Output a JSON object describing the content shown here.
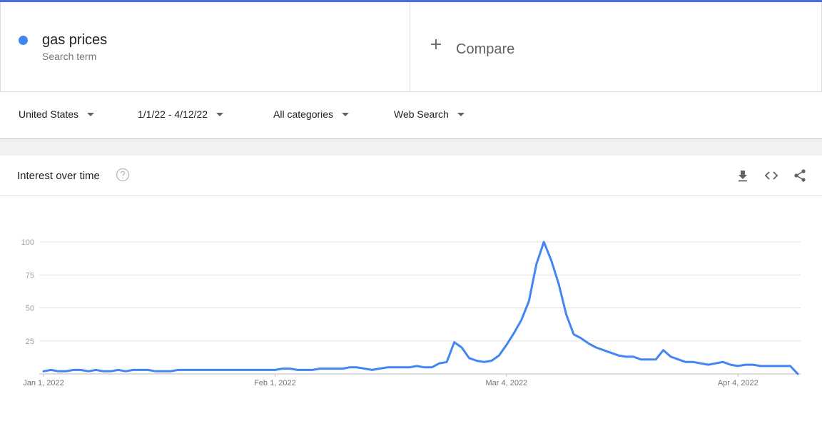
{
  "search_term": {
    "name": "gas prices",
    "subtitle": "Search term",
    "color": "#4285f4"
  },
  "compare": {
    "label": "Compare",
    "icon": "plus-icon"
  },
  "filters": {
    "region": "United States",
    "date_range": "1/1/22 - 4/12/22",
    "category": "All categories",
    "property": "Web Search"
  },
  "panel": {
    "title": "Interest over time",
    "icons": [
      "help-icon",
      "download-icon",
      "embed-code-icon",
      "share-icon"
    ]
  },
  "chart_data": {
    "type": "line",
    "title": "",
    "xlabel": "",
    "ylabel": "",
    "ylim": [
      0,
      100
    ],
    "yticks": [
      25,
      50,
      75,
      100
    ],
    "grid": true,
    "x_tick_labels": [
      "Jan 1, 2022",
      "Feb 1, 2022",
      "Mar 4, 2022",
      "Apr 4, 2022"
    ],
    "x_tick_days": [
      0,
      31,
      62,
      93
    ],
    "series": [
      {
        "name": "gas prices",
        "color": "#4285f4",
        "values": [
          2,
          3,
          2,
          2,
          3,
          3,
          2,
          3,
          2,
          2,
          3,
          2,
          3,
          3,
          3,
          2,
          2,
          2,
          3,
          3,
          3,
          3,
          3,
          3,
          3,
          3,
          3,
          3,
          3,
          3,
          3,
          3,
          4,
          4,
          3,
          3,
          3,
          4,
          4,
          4,
          4,
          5,
          5,
          4,
          3,
          4,
          5,
          5,
          5,
          5,
          6,
          5,
          5,
          8,
          9,
          24,
          20,
          12,
          10,
          9,
          10,
          14,
          22,
          31,
          41,
          55,
          83,
          100,
          86,
          68,
          45,
          30,
          27,
          23,
          20,
          18,
          16,
          14,
          13,
          13,
          11,
          11,
          11,
          18,
          13,
          11,
          9,
          9,
          8,
          7,
          8,
          9,
          7,
          6,
          7,
          7,
          6,
          6,
          6,
          6,
          6,
          0
        ]
      }
    ]
  }
}
